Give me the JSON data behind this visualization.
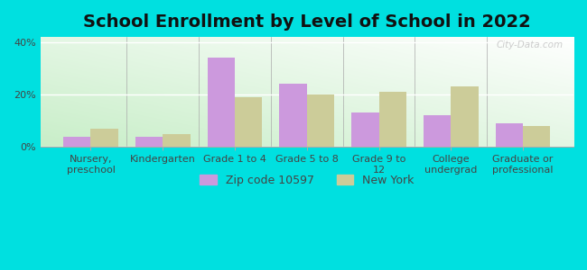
{
  "title": "School Enrollment by Level of School in 2022",
  "categories": [
    "Nursery,\npreschool",
    "Kindergarten",
    "Grade 1 to 4",
    "Grade 5 to 8",
    "Grade 9 to\n12",
    "College\nundergrad",
    "Graduate or\nprofessional"
  ],
  "zip_values": [
    4,
    4,
    34,
    24,
    13,
    12,
    9
  ],
  "ny_values": [
    7,
    5,
    19,
    20,
    21,
    23,
    8
  ],
  "zip_color": "#cc99dd",
  "ny_color": "#cccc99",
  "zip_label": "Zip code 10597",
  "ny_label": "New York",
  "bg_outer": "#00e0e0",
  "bg_corner_green": "#c8eec8",
  "bg_corner_white": "#ffffff",
  "ylim": [
    0,
    42
  ],
  "yticks": [
    0,
    20,
    40
  ],
  "ytick_labels": [
    "0%",
    "20%",
    "40%"
  ],
  "title_fontsize": 14,
  "tick_fontsize": 8,
  "legend_fontsize": 9,
  "bar_width": 0.38,
  "watermark": "City-Data.com"
}
